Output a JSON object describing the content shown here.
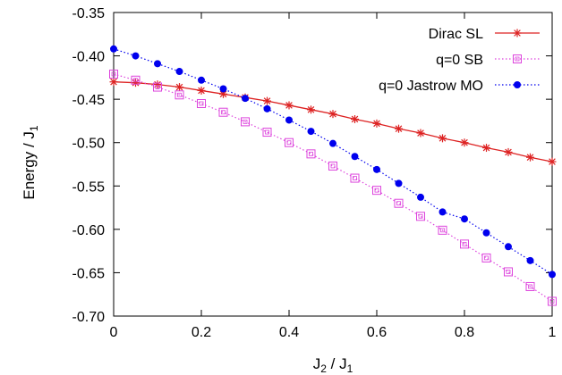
{
  "chart_data": {
    "type": "line",
    "xlabel": "J",
    "xlabel_sub1": "2",
    "xlabel_mid": " / J",
    "xlabel_sub2": "1",
    "ylabel": "Energy / J",
    "ylabel_sub": "1",
    "xlim": [
      0,
      1
    ],
    "ylim": [
      -0.7,
      -0.35
    ],
    "xticks": [
      0,
      0.2,
      0.4,
      0.6,
      0.8,
      1
    ],
    "xtick_labels": [
      "0",
      "0.2",
      "0.4",
      "0.6",
      "0.8",
      "1"
    ],
    "yticks": [
      -0.7,
      -0.65,
      -0.6,
      -0.55,
      -0.5,
      -0.45,
      -0.4,
      -0.35
    ],
    "ytick_labels": [
      "-0.70",
      "-0.65",
      "-0.60",
      "-0.55",
      "-0.50",
      "-0.45",
      "-0.40",
      "-0.35"
    ],
    "grid": false,
    "legend_position": "top-right",
    "x": [
      0,
      0.05,
      0.1,
      0.15,
      0.2,
      0.25,
      0.3,
      0.35,
      0.4,
      0.45,
      0.5,
      0.55,
      0.6,
      0.65,
      0.7,
      0.75,
      0.8,
      0.85,
      0.9,
      0.95,
      1
    ],
    "series": [
      {
        "name": "Dirac SL",
        "color": "#dd2222",
        "marker": "star",
        "line": "solid",
        "values": [
          -0.43,
          -0.431,
          -0.433,
          -0.436,
          -0.44,
          -0.444,
          -0.448,
          -0.452,
          -0.457,
          -0.462,
          -0.467,
          -0.473,
          -0.478,
          -0.484,
          -0.489,
          -0.495,
          -0.5,
          -0.506,
          -0.511,
          -0.517,
          -0.522
        ]
      },
      {
        "name": "q=0 SB",
        "color": "#dd44dd",
        "marker": "open-square",
        "line": "dotted",
        "values": [
          -0.421,
          -0.428,
          -0.436,
          -0.445,
          -0.455,
          -0.465,
          -0.476,
          -0.488,
          -0.5,
          -0.513,
          -0.527,
          -0.541,
          -0.555,
          -0.57,
          -0.585,
          -0.601,
          -0.617,
          -0.633,
          -0.649,
          -0.666,
          -0.683
        ]
      },
      {
        "name": "q=0 Jastrow MO",
        "color": "#0000ee",
        "marker": "filled-circle",
        "line": "dotted",
        "values": [
          -0.392,
          -0.4,
          -0.409,
          -0.418,
          -0.428,
          -0.438,
          -0.449,
          -0.461,
          -0.474,
          -0.487,
          -0.501,
          -0.516,
          -0.531,
          -0.547,
          -0.563,
          -0.58,
          -0.588,
          -0.604,
          -0.62,
          -0.636,
          -0.652
        ]
      }
    ]
  }
}
